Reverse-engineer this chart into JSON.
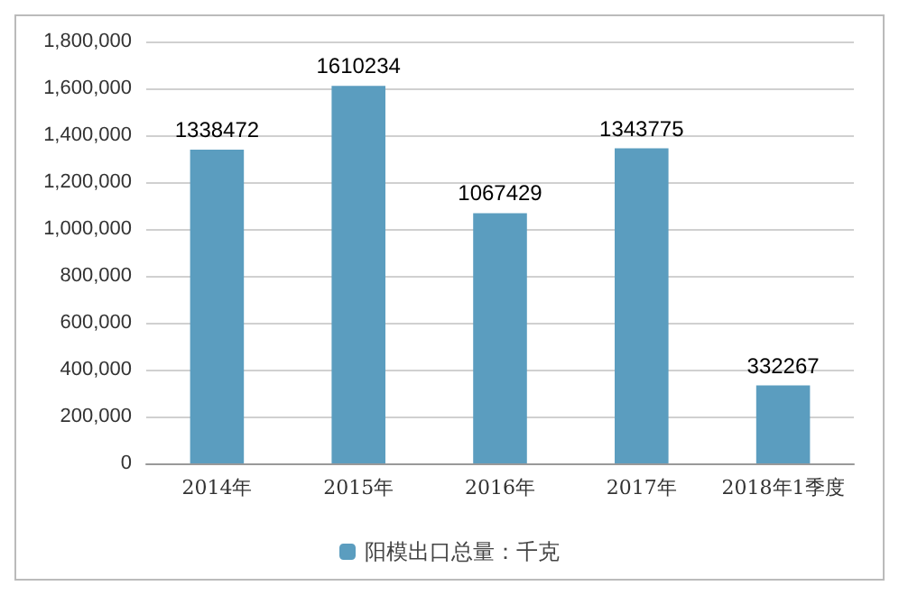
{
  "chart_data": {
    "type": "bar",
    "categories": [
      "2014年",
      "2015年",
      "2016年",
      "2017年",
      "2018年1季度"
    ],
    "series": [
      {
        "name": "阳模出口总量：千克",
        "color": "#5b9dbf",
        "values": [
          1338472,
          1610234,
          1067429,
          1343775,
          332267
        ]
      }
    ],
    "ylim": [
      0,
      1800000
    ],
    "yticks": [
      {
        "value": 0,
        "label": "0"
      },
      {
        "value": 200000,
        "label": "200,000"
      },
      {
        "value": 400000,
        "label": "400,000"
      },
      {
        "value": 600000,
        "label": "600,000"
      },
      {
        "value": 800000,
        "label": "800,000"
      },
      {
        "value": 1000000,
        "label": "1,000,000"
      },
      {
        "value": 1200000,
        "label": "1,200,000"
      },
      {
        "value": 1400000,
        "label": "1,400,000"
      },
      {
        "value": 1600000,
        "label": "1,600,000"
      },
      {
        "value": 1800000,
        "label": "1,800,000"
      }
    ],
    "grid": "y",
    "legend": "bottom",
    "data_labels": true
  }
}
